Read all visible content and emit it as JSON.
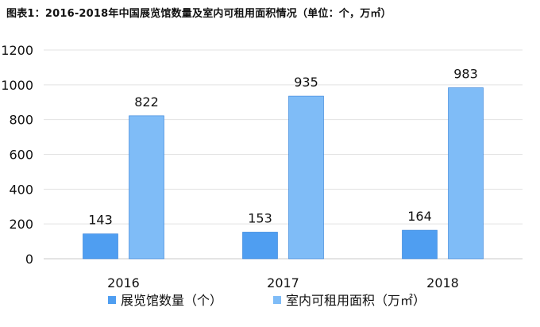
{
  "chart_data": {
    "type": "bar",
    "title": "图表1：2016-2018年中国展览馆数量及室内可租用面积情况（单位：个，万㎡）",
    "categories": [
      "2016",
      "2017",
      "2018"
    ],
    "series": [
      {
        "name": "展览馆数量（个）",
        "values": [
          143,
          153,
          164
        ],
        "color": "#4f9ef1"
      },
      {
        "name": "室内可租用面积（万㎡）",
        "values": [
          822,
          935,
          983
        ],
        "color": "#7fbcf7"
      }
    ],
    "ylim": [
      0,
      1200
    ],
    "yticks": [
      0,
      200,
      400,
      600,
      800,
      1000,
      1200
    ],
    "grid": true,
    "legend_position": "bottom"
  }
}
